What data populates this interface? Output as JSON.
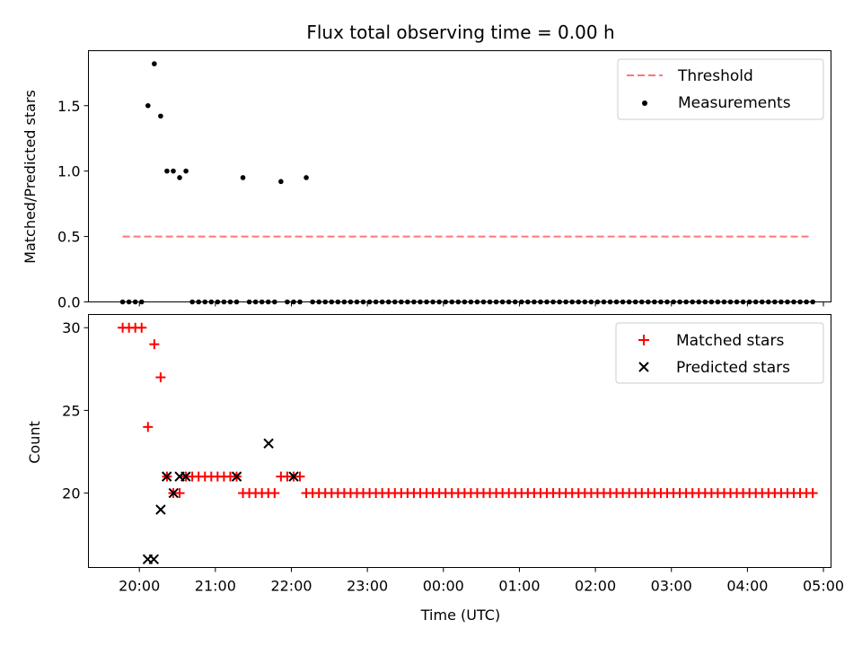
{
  "figure": {
    "title": "Flux total observing time = 0.00 h",
    "xlabel": "Time (UTC)",
    "x_ticks": [
      "20:00",
      "21:00",
      "22:00",
      "23:00",
      "00:00",
      "01:00",
      "02:00",
      "03:00",
      "04:00",
      "05:00"
    ],
    "x_tick_hours": [
      0,
      1,
      2,
      3,
      4,
      5,
      6,
      7,
      8,
      9
    ],
    "x_range_hours": [
      -0.67,
      9.1
    ]
  },
  "chart_data": [
    {
      "type": "scatter",
      "ylabel": "Matched/Predicted stars",
      "ylim": [
        0,
        1.92
      ],
      "y_ticks": [
        "0.0",
        "0.5",
        "1.0",
        "1.5"
      ],
      "y_tick_values": [
        0,
        0.5,
        1.0,
        1.5
      ],
      "legend_position": "top-right",
      "threshold": {
        "name": "Threshold",
        "value": 0.5,
        "x_range_hours": [
          -0.22,
          8.85
        ],
        "color": "#ff7777"
      },
      "measurements": {
        "name": "Measurements",
        "color": "#000000",
        "start_hour": -0.22,
        "step_hours": 0.0833,
        "values": [
          0,
          0,
          0,
          0,
          1.5,
          1.82,
          1.42,
          1.0,
          1.0,
          0.95,
          1.0,
          0,
          0,
          0,
          0,
          0,
          0,
          0,
          0,
          0.95,
          0,
          0,
          0,
          0,
          0,
          0.92,
          0,
          0,
          0,
          0.95,
          0,
          0,
          0,
          0,
          0,
          0,
          0,
          0,
          0,
          0,
          0,
          0,
          0,
          0,
          0,
          0,
          0,
          0,
          0,
          0,
          0,
          0,
          0,
          0,
          0,
          0,
          0,
          0,
          0,
          0,
          0,
          0,
          0,
          0,
          0,
          0,
          0,
          0,
          0,
          0,
          0,
          0,
          0,
          0,
          0,
          0,
          0,
          0,
          0,
          0,
          0,
          0,
          0,
          0,
          0,
          0,
          0,
          0,
          0,
          0,
          0,
          0,
          0,
          0,
          0,
          0,
          0,
          0,
          0,
          0,
          0,
          0,
          0,
          0,
          0,
          0,
          0,
          0,
          0,
          0
        ]
      }
    },
    {
      "type": "scatter",
      "ylabel": "Count",
      "ylim": [
        15.5,
        30.8
      ],
      "y_ticks": [
        "20",
        "25",
        "30"
      ],
      "y_tick_values": [
        20,
        25,
        30
      ],
      "legend_position": "top-right",
      "series": [
        {
          "name": "Matched stars",
          "marker": "+",
          "color": "#ff0000",
          "start_hour": -0.22,
          "step_hours": 0.0833,
          "values": [
            30,
            30,
            30,
            30,
            24,
            29,
            27,
            21,
            20,
            20,
            21,
            21,
            21,
            21,
            21,
            21,
            21,
            21,
            21,
            20,
            20,
            20,
            20,
            20,
            20,
            21,
            21,
            21,
            21,
            20,
            20,
            20,
            20,
            20,
            20,
            20,
            20,
            20,
            20,
            20,
            20,
            20,
            20,
            20,
            20,
            20,
            20,
            20,
            20,
            20,
            20,
            20,
            20,
            20,
            20,
            20,
            20,
            20,
            20,
            20,
            20,
            20,
            20,
            20,
            20,
            20,
            20,
            20,
            20,
            20,
            20,
            20,
            20,
            20,
            20,
            20,
            20,
            20,
            20,
            20,
            20,
            20,
            20,
            20,
            20,
            20,
            20,
            20,
            20,
            20,
            20,
            20,
            20,
            20,
            20,
            20,
            20,
            20,
            20,
            20,
            20,
            20,
            20,
            20,
            20,
            20,
            20,
            20,
            20,
            20
          ]
        },
        {
          "name": "Predicted stars",
          "marker": "x",
          "color": "#000000",
          "x_hours": [
            0.11,
            0.19,
            0.28,
            0.36,
            0.45,
            0.53,
            0.61,
            1.28,
            1.7,
            2.03
          ],
          "values": [
            16,
            16,
            19,
            21,
            20,
            21,
            21,
            21,
            23,
            21
          ]
        }
      ]
    }
  ]
}
